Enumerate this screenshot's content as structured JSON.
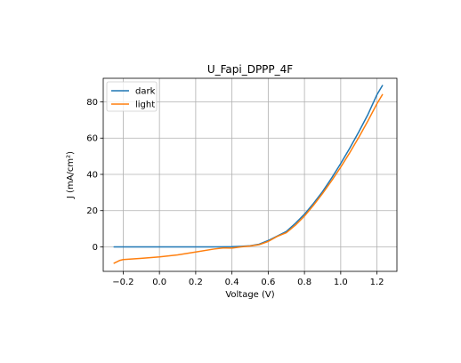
{
  "chart_data": {
    "type": "line",
    "title": "U_Fapi_DPPP_4F",
    "xlabel": "Voltage (V)",
    "ylabel": "J (mA/cm²)",
    "xlim": [
      -0.31,
      1.31
    ],
    "ylim": [
      -13.5,
      93.0
    ],
    "xticks": [
      -0.2,
      0.0,
      0.2,
      0.4,
      0.6,
      0.8,
      1.0,
      1.2
    ],
    "xtick_labels": [
      "−0.2",
      "0.0",
      "0.2",
      "0.4",
      "0.6",
      "0.8",
      "1.0",
      "1.2"
    ],
    "yticks": [
      0,
      20,
      40,
      60,
      80
    ],
    "ytick_labels": [
      "0",
      "20",
      "40",
      "60",
      "80"
    ],
    "grid": true,
    "legend_position": "upper-left",
    "series": [
      {
        "name": "dark",
        "color": "#1f77b4",
        "x": [
          -0.25,
          -0.1,
          0.0,
          0.1,
          0.2,
          0.3,
          0.4,
          0.45,
          0.5,
          0.55,
          0.6,
          0.65,
          0.7,
          0.75,
          0.8,
          0.85,
          0.9,
          0.95,
          1.0,
          1.05,
          1.1,
          1.15,
          1.2,
          1.23
        ],
        "y": [
          0.0,
          0.0,
          0.0,
          0.0,
          0.0,
          0.0,
          0.1,
          0.3,
          0.6,
          1.5,
          3.5,
          6.0,
          8.5,
          13.0,
          18.0,
          24.0,
          30.5,
          38.0,
          46.0,
          54.5,
          63.5,
          73.0,
          84.0,
          89.0
        ]
      },
      {
        "name": "light",
        "color": "#ff7f0e",
        "x": [
          -0.25,
          -0.22,
          -0.2,
          -0.1,
          0.0,
          0.1,
          0.2,
          0.3,
          0.35,
          0.4,
          0.45,
          0.5,
          0.55,
          0.6,
          0.65,
          0.7,
          0.75,
          0.8,
          0.85,
          0.9,
          0.95,
          1.0,
          1.05,
          1.1,
          1.15,
          1.2,
          1.23
        ],
        "y": [
          -9.0,
          -7.5,
          -7.0,
          -6.3,
          -5.5,
          -4.4,
          -2.8,
          -1.2,
          -0.6,
          -0.7,
          0.0,
          0.5,
          1.2,
          3.0,
          5.8,
          7.8,
          12.0,
          17.0,
          23.0,
          29.5,
          36.5,
          44.0,
          52.0,
          60.5,
          69.5,
          79.0,
          84.0
        ]
      }
    ]
  }
}
